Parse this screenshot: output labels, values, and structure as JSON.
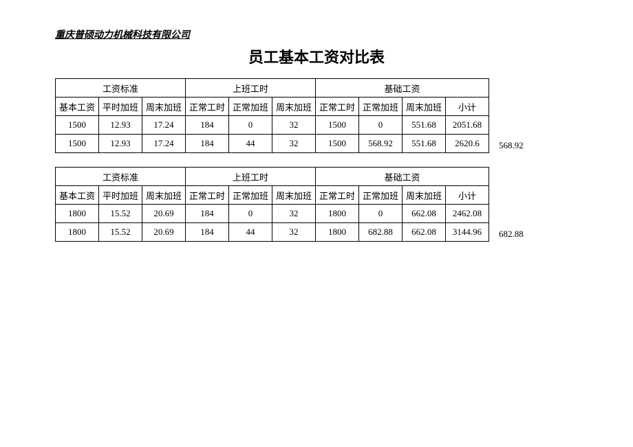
{
  "company": "重庆普硕动力机械科技有限公司",
  "title": "员工基本工资对比表",
  "group_headers": {
    "g1": "工资标准",
    "g2": "上班工时",
    "g3": "基础工资"
  },
  "sub_headers": {
    "h0": "基本工资",
    "h1": "平时加班",
    "h2": "周末加班",
    "h3": "正常工时",
    "h4": "正常加班",
    "h5": "周末加班",
    "h6": "正常工时",
    "h7": "正常加班",
    "h8": "周末加班",
    "h9": "小计"
  },
  "t1": {
    "r1": {
      "c0": "1500",
      "c1": "12.93",
      "c2": "17.24",
      "c3": "184",
      "c4": "0",
      "c5": "32",
      "c6": "1500",
      "c7": "0",
      "c8": "551.68",
      "c9": "2051.68"
    },
    "r2": {
      "c0": "1500",
      "c1": "12.93",
      "c2": "17.24",
      "c3": "184",
      "c4": "44",
      "c5": "32",
      "c6": "1500",
      "c7": "568.92",
      "c8": "551.68",
      "c9": "2620.6"
    },
    "side": "568.92"
  },
  "t2": {
    "r1": {
      "c0": "1800",
      "c1": "15.52",
      "c2": "20.69",
      "c3": "184",
      "c4": "0",
      "c5": "32",
      "c6": "1800",
      "c7": "0",
      "c8": "662.08",
      "c9": "2462.08"
    },
    "r2": {
      "c0": "1800",
      "c1": "15.52",
      "c2": "20.69",
      "c3": "184",
      "c4": "44",
      "c5": "32",
      "c6": "1800",
      "c7": "682.88",
      "c8": "662.08",
      "c9": "3144.96"
    },
    "side": "682.88"
  }
}
